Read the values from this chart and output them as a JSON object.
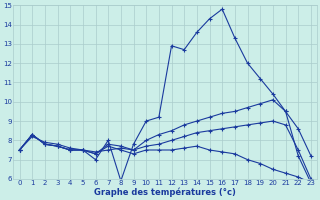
{
  "xlabel": "Graphe des températures (°c)",
  "bg_color": "#cceee8",
  "line_color": "#1a3a9e",
  "grid_color": "#aacccc",
  "xlim": [
    -0.5,
    23.5
  ],
  "ylim": [
    6,
    15
  ],
  "xticks": [
    0,
    1,
    2,
    3,
    4,
    5,
    6,
    7,
    8,
    9,
    10,
    11,
    12,
    13,
    14,
    15,
    16,
    17,
    18,
    19,
    20,
    21,
    22,
    23
  ],
  "yticks": [
    6,
    7,
    8,
    9,
    10,
    11,
    12,
    13,
    14,
    15
  ],
  "series": [
    {
      "x": [
        0,
        1,
        2,
        3,
        4,
        5,
        6,
        7,
        8,
        9,
        10,
        11,
        12,
        13,
        14,
        15,
        16,
        17,
        18,
        19,
        20,
        21,
        22,
        23
      ],
      "y": [
        7.5,
        8.3,
        7.8,
        7.7,
        7.5,
        7.5,
        7.0,
        8.0,
        5.9,
        7.8,
        9.0,
        9.2,
        12.9,
        12.7,
        13.6,
        14.3,
        14.8,
        13.3,
        12.0,
        11.2,
        10.4,
        9.5,
        8.6,
        7.2
      ]
    },
    {
      "x": [
        0,
        1,
        2,
        3,
        4,
        5,
        6,
        7,
        8,
        9,
        10,
        11,
        12,
        13,
        14,
        15,
        16,
        17,
        18,
        19,
        20,
        21,
        22,
        23
      ],
      "y": [
        7.5,
        8.3,
        7.8,
        7.7,
        7.5,
        7.5,
        7.3,
        7.8,
        7.7,
        7.5,
        8.0,
        8.3,
        8.5,
        8.8,
        9.0,
        9.2,
        9.4,
        9.5,
        9.7,
        9.9,
        10.1,
        9.5,
        7.2,
        5.8
      ]
    },
    {
      "x": [
        0,
        1,
        2,
        3,
        4,
        5,
        6,
        7,
        8,
        9,
        10,
        11,
        12,
        13,
        14,
        15,
        16,
        17,
        18,
        19,
        20,
        21,
        22,
        23
      ],
      "y": [
        7.5,
        8.2,
        7.9,
        7.8,
        7.6,
        7.5,
        7.4,
        7.5,
        7.6,
        7.5,
        7.7,
        7.8,
        8.0,
        8.2,
        8.4,
        8.5,
        8.6,
        8.7,
        8.8,
        8.9,
        9.0,
        8.8,
        7.5,
        6.0
      ]
    },
    {
      "x": [
        0,
        1,
        2,
        3,
        4,
        5,
        6,
        7,
        8,
        9,
        10,
        11,
        12,
        13,
        14,
        15,
        16,
        17,
        18,
        19,
        20,
        21,
        22,
        23
      ],
      "y": [
        7.5,
        8.3,
        7.8,
        7.7,
        7.5,
        7.5,
        7.3,
        7.7,
        7.5,
        7.3,
        7.5,
        7.5,
        7.5,
        7.6,
        7.7,
        7.5,
        7.4,
        7.3,
        7.0,
        6.8,
        6.5,
        6.3,
        6.1,
        5.8
      ]
    }
  ]
}
